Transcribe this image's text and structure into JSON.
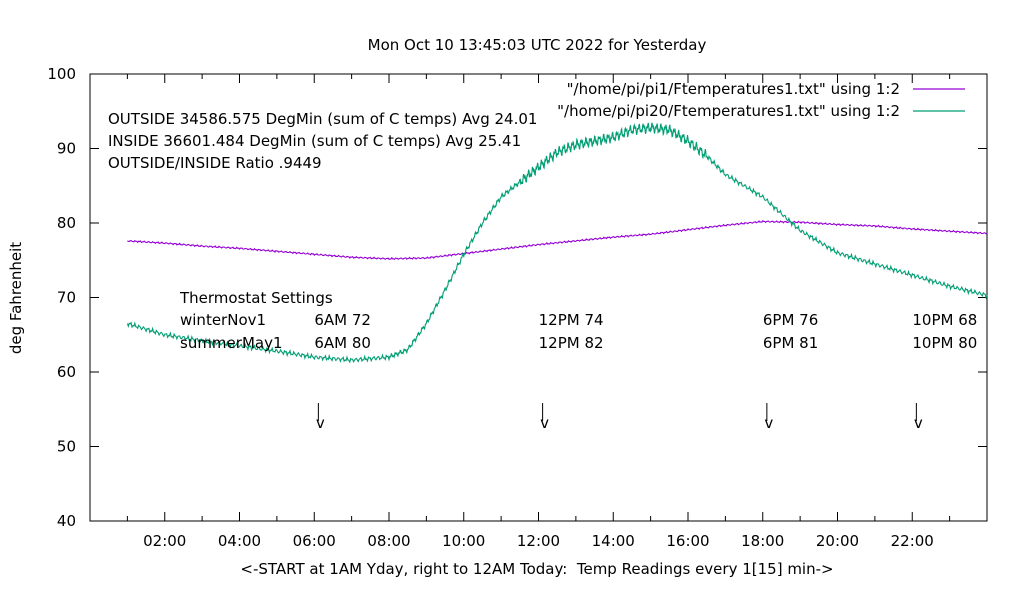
{
  "chart_data": {
    "type": "line",
    "title": "Mon Oct 10 13:45:03 UTC 2022 for Yesterday",
    "xlabel": "<-START at 1AM Yday, right to 12AM Today:  Temp Readings every 1[15] min->",
    "ylabel": "deg Fahrenheit",
    "xlim": [
      "00:00",
      "24:00"
    ],
    "ylim": [
      40,
      100
    ],
    "x_ticks": [
      "02:00",
      "04:00",
      "06:00",
      "08:00",
      "10:00",
      "12:00",
      "14:00",
      "16:00",
      "18:00",
      "20:00",
      "22:00"
    ],
    "y_ticks": [
      40,
      50,
      60,
      70,
      80,
      90,
      100
    ],
    "grid": false,
    "legend_position": "top-right",
    "series": [
      {
        "name": "\"/home/pi/pi1/Ftemperatures1.txt\" using 1:2",
        "color": "#9400d3",
        "x": [
          "01:00",
          "02:00",
          "03:00",
          "04:00",
          "05:00",
          "06:00",
          "07:00",
          "08:00",
          "09:00",
          "10:00",
          "11:00",
          "12:00",
          "13:00",
          "14:00",
          "15:00",
          "16:00",
          "17:00",
          "18:00",
          "19:00",
          "20:00",
          "21:00",
          "22:00",
          "23:00",
          "24:00"
        ],
        "values": [
          77.6,
          77.3,
          76.9,
          76.6,
          76.2,
          75.8,
          75.4,
          75.2,
          75.3,
          75.9,
          76.5,
          77.1,
          77.6,
          78.1,
          78.5,
          79.1,
          79.7,
          80.2,
          80.1,
          79.8,
          79.6,
          79.2,
          78.9,
          78.6
        ]
      },
      {
        "name": "\"/home/pi/pi20/Ftemperatures1.txt\" using 1:2",
        "color": "#009e73",
        "x": [
          "01:00",
          "02:00",
          "03:00",
          "04:00",
          "05:00",
          "06:00",
          "07:00",
          "08:00",
          "08:30",
          "09:00",
          "09:30",
          "10:00",
          "10:30",
          "11:00",
          "11:30",
          "12:00",
          "12:30",
          "13:00",
          "13:30",
          "14:00",
          "14:30",
          "15:00",
          "15:30",
          "16:00",
          "16:30",
          "17:00",
          "18:00",
          "19:00",
          "20:00",
          "21:00",
          "22:00",
          "23:00",
          "24:00"
        ],
        "values": [
          66.5,
          65.0,
          64.2,
          63.5,
          62.8,
          62.0,
          61.6,
          62.0,
          63.0,
          66.5,
          71.0,
          75.8,
          80.0,
          83.5,
          85.5,
          87.5,
          89.5,
          90.5,
          91.0,
          91.5,
          92.5,
          92.8,
          92.5,
          91.0,
          89.0,
          86.5,
          83.5,
          79.0,
          76.0,
          74.5,
          73.0,
          71.5,
          70.3
        ]
      }
    ],
    "annotations": [
      "OUTSIDE 34586.575 DegMin (sum of C temps) Avg 24.01",
      "INSIDE 36601.484 DegMin (sum of C temps) Avg 25.41",
      "OUTSIDE/INSIDE Ratio .9449"
    ],
    "thermostat": {
      "title": "Thermostat Settings",
      "rows": [
        {
          "label": "winterNov1",
          "settings": [
            "6AM 72",
            "12PM 74",
            "6PM 76",
            "10PM 68"
          ]
        },
        {
          "label": "summerMay1",
          "settings": [
            "6AM 80",
            "12PM 82",
            "6PM 81",
            "10PM 80"
          ]
        }
      ],
      "marker_times": [
        "06:05",
        "12:05",
        "18:05",
        "22:05"
      ],
      "marker_symbol": "v"
    }
  }
}
